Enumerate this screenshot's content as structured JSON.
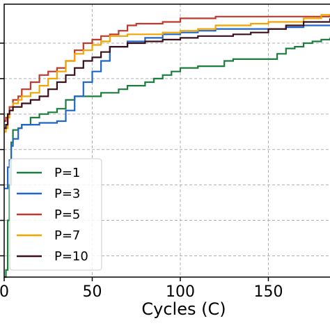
{
  "chart_data": {
    "type": "line",
    "xlabel": "Cycles (C)",
    "ylabel": "",
    "xlim": [
      0,
      185
    ],
    "ylim": [
      0.29,
      1.06
    ],
    "x_ticks": [
      0,
      50,
      100,
      150
    ],
    "x_tick_labels": [
      "0",
      "50",
      "100",
      "150"
    ],
    "y_gridlines": [
      0.35,
      0.45,
      0.55,
      0.65,
      0.75,
      0.85,
      0.95
    ],
    "grid": true,
    "legend_position": "lower-left",
    "series": [
      {
        "name": "P=1",
        "color": "#1a7f3c",
        "x": [
          0,
          1,
          2,
          3,
          4,
          5,
          8,
          10,
          15,
          20,
          25,
          30,
          35,
          40,
          45,
          50,
          55,
          60,
          65,
          70,
          75,
          80,
          85,
          90,
          95,
          100,
          110,
          120,
          125,
          130,
          140,
          150,
          155,
          160,
          165,
          170,
          175,
          180,
          185
        ],
        "y": [
          0.29,
          0.31,
          0.45,
          0.55,
          0.67,
          0.705,
          0.71,
          0.72,
          0.74,
          0.75,
          0.755,
          0.765,
          0.79,
          0.8,
          0.8,
          0.8,
          0.81,
          0.81,
          0.82,
          0.83,
          0.83,
          0.84,
          0.85,
          0.86,
          0.87,
          0.88,
          0.885,
          0.885,
          0.9,
          0.905,
          0.905,
          0.905,
          0.92,
          0.935,
          0.94,
          0.95,
          0.955,
          0.96,
          0.965
        ]
      },
      {
        "name": "P=3",
        "color": "#1f66c8",
        "x": [
          0,
          1,
          2,
          3,
          4,
          5,
          8,
          10,
          15,
          20,
          25,
          30,
          35,
          40,
          45,
          50,
          55,
          60,
          70,
          80,
          90,
          100,
          110,
          120,
          130,
          140,
          150,
          160,
          170,
          185
        ],
        "y": [
          0.54,
          0.54,
          0.6,
          0.62,
          0.66,
          0.68,
          0.71,
          0.72,
          0.72,
          0.725,
          0.725,
          0.73,
          0.76,
          0.8,
          0.84,
          0.87,
          0.9,
          0.94,
          0.955,
          0.965,
          0.975,
          0.98,
          0.985,
          0.99,
          0.99,
          0.99,
          0.99,
          0.995,
          1.0,
          1.0
        ]
      },
      {
        "name": "P=5",
        "color": "#c0392b",
        "x": [
          0,
          1,
          2,
          3,
          5,
          8,
          10,
          15,
          20,
          25,
          30,
          35,
          40,
          45,
          50,
          55,
          60,
          65,
          70,
          75,
          80,
          90,
          100,
          110,
          120,
          130,
          140,
          150,
          160,
          170,
          185
        ],
        "y": [
          0.73,
          0.74,
          0.75,
          0.77,
          0.79,
          0.8,
          0.82,
          0.84,
          0.86,
          0.87,
          0.88,
          0.9,
          0.93,
          0.95,
          0.96,
          0.97,
          0.975,
          0.985,
          1.0,
          1.005,
          1.005,
          1.01,
          1.02,
          1.02,
          1.025,
          1.025,
          1.025,
          1.025,
          1.025,
          1.025,
          1.03
        ]
      },
      {
        "name": "P=7",
        "color": "#f0a500",
        "x": [
          0,
          1,
          2,
          3,
          5,
          8,
          10,
          15,
          20,
          25,
          30,
          35,
          40,
          45,
          50,
          55,
          60,
          70,
          80,
          90,
          100,
          110,
          120,
          130,
          140,
          150,
          160,
          170,
          180,
          185
        ],
        "y": [
          0.7,
          0.71,
          0.74,
          0.76,
          0.78,
          0.79,
          0.8,
          0.81,
          0.83,
          0.85,
          0.87,
          0.9,
          0.92,
          0.93,
          0.945,
          0.955,
          0.97,
          0.975,
          0.975,
          0.98,
          0.985,
          0.99,
          1.0,
          1.0,
          1.005,
          1.01,
          1.01,
          1.02,
          1.03,
          1.03
        ]
      },
      {
        "name": "P=10",
        "color": "#3b0f1a",
        "x": [
          0,
          1,
          2,
          3,
          5,
          8,
          10,
          15,
          20,
          25,
          30,
          35,
          40,
          45,
          50,
          55,
          60,
          70,
          80,
          90,
          100,
          110,
          120,
          130,
          140,
          150,
          160,
          170,
          185
        ],
        "y": [
          0.71,
          0.72,
          0.75,
          0.76,
          0.77,
          0.77,
          0.78,
          0.79,
          0.8,
          0.82,
          0.84,
          0.86,
          0.88,
          0.9,
          0.91,
          0.925,
          0.94,
          0.95,
          0.955,
          0.96,
          0.965,
          0.97,
          0.97,
          0.975,
          0.98,
          0.99,
          1.0,
          1.01,
          1.02
        ]
      }
    ]
  }
}
